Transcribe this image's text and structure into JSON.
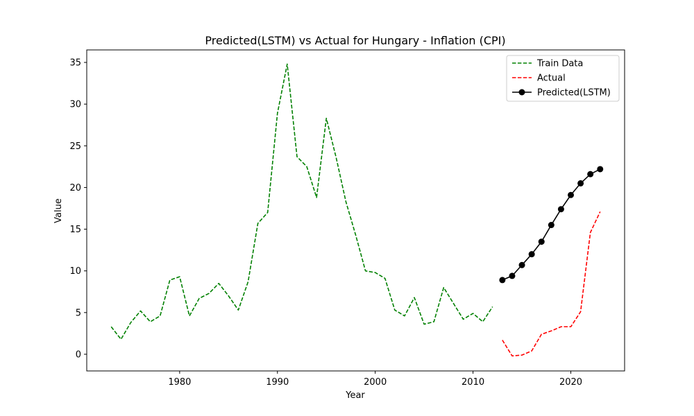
{
  "chart_data": {
    "type": "line",
    "title": "Predicted(LSTM) vs Actual for Hungary - Inflation (CPI)",
    "xlabel": "Year",
    "ylabel": "Value",
    "xlim": [
      1970.5,
      2025.5
    ],
    "ylim": [
      -2.0,
      36.5
    ],
    "x_ticks": [
      1980,
      1990,
      2000,
      2010,
      2020
    ],
    "y_ticks": [
      0,
      5,
      10,
      15,
      20,
      25,
      30,
      35
    ],
    "grid": false,
    "legend_position": "top-right",
    "series": [
      {
        "name": "Train Data",
        "color": "#008000",
        "style": "dashed",
        "x": [
          1973,
          1974,
          1975,
          1976,
          1977,
          1978,
          1979,
          1980,
          1981,
          1982,
          1983,
          1984,
          1985,
          1986,
          1987,
          1988,
          1989,
          1990,
          1991,
          1992,
          1993,
          1994,
          1995,
          1996,
          1997,
          1998,
          1999,
          2000,
          2001,
          2002,
          2003,
          2004,
          2005,
          2006,
          2007,
          2008,
          2009,
          2010,
          2011,
          2012
        ],
        "y": [
          3.3,
          1.8,
          3.8,
          5.2,
          3.9,
          4.6,
          8.9,
          9.3,
          4.6,
          6.7,
          7.3,
          8.5,
          7.0,
          5.3,
          8.7,
          15.7,
          17.0,
          28.9,
          34.8,
          23.7,
          22.5,
          18.8,
          28.3,
          23.6,
          18.3,
          14.3,
          10.0,
          9.8,
          9.1,
          5.3,
          4.6,
          6.8,
          3.6,
          3.9,
          8.0,
          6.1,
          4.2,
          4.9,
          3.9,
          5.7
        ]
      },
      {
        "name": "Actual",
        "color": "#ff0000",
        "style": "dashed",
        "x": [
          2013,
          2014,
          2015,
          2016,
          2017,
          2018,
          2019,
          2020,
          2021,
          2022,
          2023
        ],
        "y": [
          1.7,
          -0.2,
          -0.1,
          0.4,
          2.4,
          2.8,
          3.3,
          3.3,
          5.1,
          14.6,
          17.1
        ]
      },
      {
        "name": "Predicted(LSTM)",
        "color": "#000000",
        "style": "solid-markers",
        "x": [
          2013,
          2014,
          2015,
          2016,
          2017,
          2018,
          2019,
          2020,
          2021,
          2022,
          2023
        ],
        "y": [
          8.9,
          9.4,
          10.7,
          12.0,
          13.5,
          15.5,
          17.4,
          19.1,
          20.5,
          21.6,
          22.2
        ]
      }
    ]
  }
}
